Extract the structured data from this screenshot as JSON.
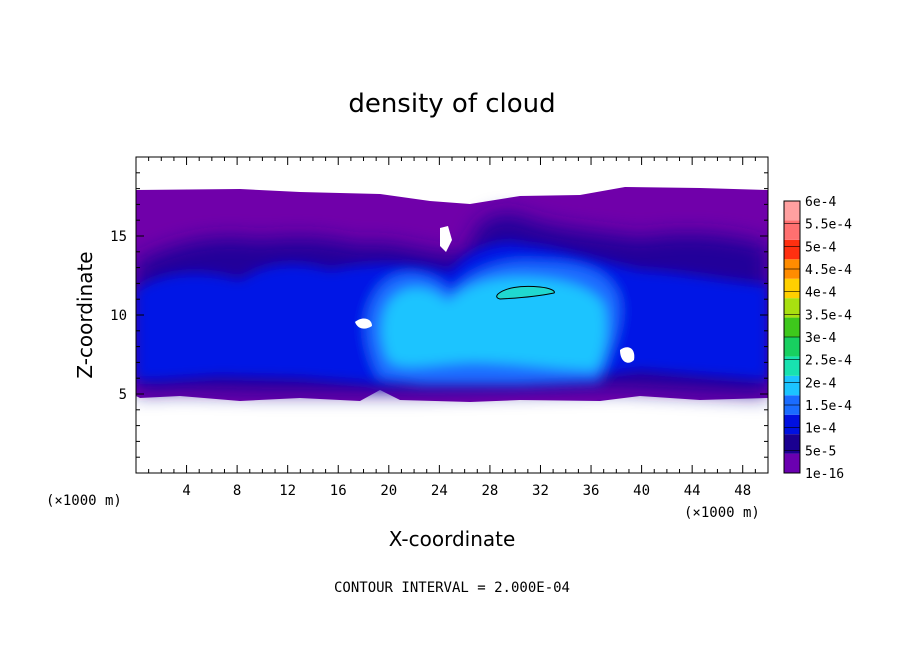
{
  "chart_data": {
    "type": "heatmap",
    "title": "density of cloud",
    "xlabel": "X-coordinate",
    "ylabel": "Z-coordinate",
    "x_unit": "(×1000 m)",
    "x_unit_right": "(×1000 m)",
    "xlim": [
      0,
      50
    ],
    "ylim": [
      0,
      20
    ],
    "x_ticks": [
      4,
      8,
      12,
      16,
      20,
      24,
      28,
      32,
      36,
      40,
      44,
      48
    ],
    "y_ticks": [
      5,
      10,
      15
    ],
    "contour_interval": "CONTOUR INTERVAL = 2.000E-04",
    "colorbar": {
      "labels": [
        "1e-16",
        "5e-5",
        "1e-4",
        "1.5e-4",
        "2e-4",
        "2.5e-4",
        "3e-4",
        "3.5e-4",
        "4e-4",
        "4.5e-4",
        "5e-4",
        "5.5e-4",
        "6e-4"
      ],
      "colors": [
        "#6a00b0",
        "#1a0090",
        "#0010e0",
        "#1a6cff",
        "#1cc4ff",
        "#18e2b0",
        "#18d060",
        "#3ec81c",
        "#a8e010",
        "#ffd000",
        "#ff8c00",
        "#ff3010",
        "#ff7070",
        "#ffa0a0"
      ]
    },
    "regions": {
      "cloud_bottom_z": 4.6,
      "cloud_top_z": 17.8,
      "core_x_range": [
        19,
        37
      ],
      "core_z_range": [
        5.5,
        12.5
      ],
      "max_contour_x_range": [
        28.5,
        33
      ],
      "max_contour_z": 11.3
    }
  }
}
